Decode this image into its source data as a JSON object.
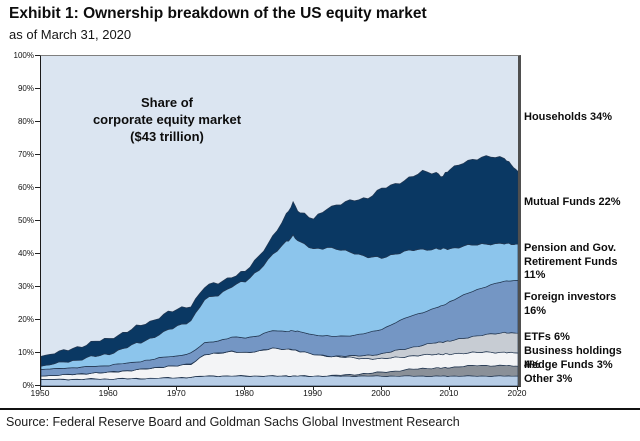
{
  "header": {
    "title": "Exhibit 1: Ownership breakdown of the US equity market",
    "subtitle": "as of March 31, 2020"
  },
  "source": "Source: Federal Reserve Board and Goldman Sachs Global Investment Research",
  "right_labels": [
    {
      "text": "Households 34%"
    },
    {
      "text": "Mutual Funds 22%"
    },
    {
      "text": "Pension and Gov.\nRetirement Funds 11%"
    },
    {
      "text": "Foreign investors 16%"
    },
    {
      "text": "ETFs 6%"
    },
    {
      "text": "Business holdings 4%"
    },
    {
      "text": "Hedge Funds 3%"
    },
    {
      "text": "Other 3%"
    }
  ],
  "chart_data": {
    "type": "area",
    "stacked": true,
    "annotation": "Share of\ncorporate equity market\n($43 trillion)",
    "ylim": [
      0,
      100
    ],
    "yticks": [
      "100%",
      "90%",
      "80%",
      "70%",
      "60%",
      "50%",
      "40%",
      "30%",
      "20%",
      "10%",
      "0%"
    ],
    "xticks": [
      "1950",
      "1960",
      "1970",
      "1980",
      "1990",
      "2000",
      "2010",
      "2020"
    ],
    "grid": false,
    "legend_position": "right-outside",
    "households": {
      "name": "Households",
      "label": "Households 34%",
      "share_2020": 34,
      "color": "#dbe5f1"
    },
    "x": [
      1950,
      1952,
      1954,
      1956,
      1958,
      1960,
      1962,
      1964,
      1966,
      1968,
      1970,
      1972,
      1974,
      1976,
      1978,
      1980,
      1982,
      1984,
      1986,
      1987,
      1988,
      1990,
      1992,
      1994,
      1996,
      1998,
      2000,
      2002,
      2004,
      2006,
      2008,
      2009,
      2010,
      2012,
      2014,
      2016,
      2018,
      2019,
      2020
    ],
    "series": [
      {
        "name": "Other",
        "label": "Other 3%",
        "share_2020": 3,
        "color": "#b7cde6",
        "values": [
          2,
          2,
          2,
          2,
          2.1,
          2.1,
          2.2,
          2.2,
          2.3,
          2.4,
          2.5,
          2.6,
          3,
          3,
          3,
          3,
          3,
          3,
          3,
          3,
          3,
          3,
          3,
          3,
          3,
          3,
          3,
          3,
          3,
          3,
          3,
          3,
          3,
          3,
          3,
          3,
          3,
          3,
          3
        ]
      },
      {
        "name": "Hedge Funds",
        "label": "Hedge Funds 3%",
        "share_2020": 3,
        "color": "#8a9098",
        "values": [
          0,
          0,
          0,
          0,
          0,
          0,
          0,
          0,
          0,
          0,
          0,
          0,
          0,
          0,
          0,
          0,
          0,
          0,
          0,
          0,
          0,
          0,
          0,
          0.3,
          0.5,
          0.8,
          1.2,
          1.5,
          2,
          2.3,
          2.5,
          2.4,
          2.6,
          3,
          3.2,
          3.2,
          3.2,
          3.1,
          3
        ]
      },
      {
        "name": "Business holdings",
        "label": "Business holdings 4%",
        "share_2020": 4,
        "color": "#f3f4f6",
        "values": [
          1,
          1.2,
          1.4,
          1.6,
          1.8,
          2,
          2.3,
          2.6,
          3,
          3.4,
          3.6,
          4,
          6.5,
          6.8,
          7.5,
          7,
          7.5,
          8.5,
          8,
          8,
          7.5,
          6.5,
          6,
          5.5,
          5,
          4.5,
          4,
          4.2,
          4,
          4,
          4.2,
          4.2,
          4,
          4,
          4,
          4,
          4,
          4,
          4
        ]
      },
      {
        "name": "ETFs",
        "label": "ETFs 6%",
        "share_2020": 6,
        "color": "#c7ccd3",
        "values": [
          0,
          0,
          0,
          0,
          0,
          0,
          0,
          0,
          0,
          0,
          0,
          0,
          0,
          0,
          0,
          0,
          0,
          0,
          0,
          0,
          0,
          0,
          0,
          0.3,
          0.6,
          1,
          1.5,
          2,
          2.5,
          3,
          3.5,
          3.8,
          4,
          4.5,
          5,
          5.5,
          6,
          6,
          6
        ]
      },
      {
        "name": "Foreign investors",
        "label": "Foreign investors 16%",
        "share_2020": 16,
        "color": "#7496c4",
        "values": [
          2,
          2,
          2,
          2,
          2,
          2.1,
          2.2,
          2.4,
          2.6,
          2.8,
          3,
          3.2,
          3.5,
          3.8,
          4.2,
          4.5,
          4.8,
          5.2,
          5.5,
          5.7,
          5.8,
          6,
          6,
          6,
          6.3,
          6.8,
          7.5,
          8.5,
          9.5,
          10,
          10.5,
          11,
          12,
          13,
          14,
          15,
          15.5,
          15.8,
          16
        ]
      },
      {
        "name": "Pension and Gov. Retirement Funds",
        "label": "Pension and Gov. Retirement Funds 11%",
        "share_2020": 11,
        "color": "#8cc5ec",
        "values": [
          1,
          1.5,
          2,
          2.5,
          3,
          3.5,
          4.5,
          5.5,
          6.5,
          7.5,
          9,
          10,
          13,
          14,
          15.5,
          17,
          20,
          23,
          27,
          29,
          27,
          26,
          27,
          26,
          25,
          23,
          21.5,
          21,
          20,
          19,
          18,
          17,
          16,
          15,
          13.5,
          12.5,
          11.5,
          11,
          11
        ]
      },
      {
        "name": "Mutual Funds",
        "label": "Mutual Funds 22%",
        "share_2020": 22,
        "color": "#0a3863",
        "values": [
          3,
          3.2,
          3.5,
          4,
          4.5,
          4.5,
          4.8,
          5,
          5,
          5.5,
          5,
          4.5,
          4,
          3.5,
          3,
          3,
          4,
          5.5,
          8,
          10,
          9,
          9,
          12,
          14,
          16,
          18,
          21,
          21,
          22,
          23.5,
          23,
          22,
          24,
          25.5,
          26,
          26.5,
          26,
          24,
          22
        ]
      }
    ],
    "outline_color": "#223650"
  }
}
